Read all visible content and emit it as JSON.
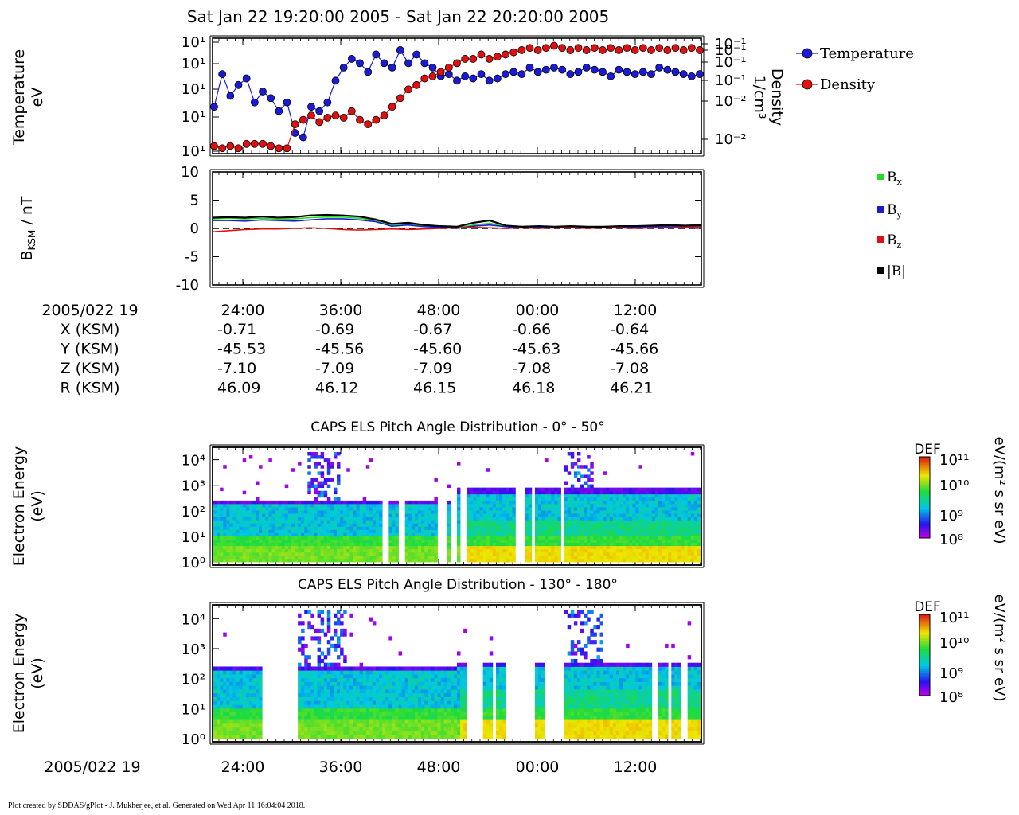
{
  "chart_data": [
    {
      "type": "line",
      "panel": "plasma-moments",
      "title": "Sat Jan 22 19:20:00 2005 - Sat Jan 22 20:20:00 2005",
      "ylabel": [
        "Temperature",
        "eV"
      ],
      "ylabel_right": [
        "Density",
        "1/cm³"
      ],
      "left_ticks": [
        "10¹",
        "10¹",
        "10¹",
        "10¹",
        "10¹"
      ],
      "right_ticks": [
        "10⁻¹",
        "10⁻¹",
        "10⁻¹",
        "10⁻¹",
        "10⁻²",
        "10⁻²"
      ],
      "legend_position": "right",
      "series": [
        {
          "name": "Temperature",
          "color": "#1b1bd6",
          "axis": "left",
          "x": [
            0,
            1,
            2,
            3,
            4,
            5,
            6,
            7,
            8,
            9,
            10,
            11,
            12,
            13,
            14,
            15,
            16,
            17,
            18,
            19,
            20,
            21,
            22,
            23,
            24,
            25,
            26,
            27,
            28,
            29,
            30,
            31,
            32,
            33,
            34,
            35,
            36,
            37,
            38,
            39,
            40,
            41,
            42,
            43,
            44,
            45,
            46,
            47,
            48,
            49,
            50,
            51,
            52,
            53,
            54,
            55,
            56,
            57,
            58,
            59,
            60
          ],
          "y": [
            20,
            35,
            25,
            30,
            33,
            22,
            27,
            24,
            18,
            22,
            8,
            6,
            20,
            18,
            22,
            32,
            38,
            42,
            40,
            36,
            44,
            40,
            38,
            46,
            40,
            44,
            40,
            38,
            34,
            35,
            32,
            34,
            33,
            35,
            32,
            33,
            35,
            36,
            35,
            38,
            36,
            37,
            38,
            37,
            35,
            36,
            38,
            37,
            36,
            34,
            37,
            36,
            35,
            36,
            35,
            38,
            37,
            36,
            35,
            34,
            35
          ]
        },
        {
          "name": "Density",
          "color": "#e01010",
          "axis": "right",
          "x": [
            0,
            1,
            2,
            3,
            4,
            5,
            6,
            7,
            8,
            9,
            10,
            11,
            12,
            13,
            14,
            15,
            16,
            17,
            18,
            19,
            20,
            21,
            22,
            23,
            24,
            25,
            26,
            27,
            28,
            29,
            30,
            31,
            32,
            33,
            34,
            35,
            36,
            37,
            38,
            39,
            40,
            41,
            42,
            43,
            44,
            45,
            46,
            47,
            48,
            49,
            50,
            51,
            52,
            53,
            54,
            55,
            56,
            57,
            58,
            59,
            60
          ],
          "y": [
            2,
            1,
            2,
            1,
            3,
            3,
            3,
            2,
            1,
            1,
            12,
            14,
            16,
            13,
            15,
            16,
            15,
            18,
            14,
            12,
            14,
            16,
            20,
            24,
            28,
            30,
            33,
            34,
            36,
            38,
            40,
            42,
            42,
            44,
            42,
            43,
            44,
            45,
            46,
            47,
            46,
            47,
            48,
            47,
            46,
            47,
            46,
            47,
            46,
            47,
            46,
            47,
            46,
            47,
            46,
            47,
            46,
            47,
            46,
            47,
            46
          ]
        }
      ]
    },
    {
      "type": "line",
      "panel": "magnetic-field",
      "ylabel_main": "B",
      "ylabel_sub": "KSM",
      "ylabel_unit": " / nT",
      "ylim": [
        -10,
        10
      ],
      "yticks": [
        10,
        5,
        0,
        -5,
        -10
      ],
      "legend_position": "right",
      "x": [
        0,
        2,
        4,
        6,
        8,
        10,
        12,
        14,
        16,
        18,
        20,
        22,
        24,
        26,
        28,
        30,
        32,
        34,
        36,
        38,
        40,
        42,
        44,
        46,
        48,
        50,
        52,
        54,
        56,
        58,
        60
      ],
      "series": [
        {
          "name": "x",
          "color": "#22dd22",
          "values": [
            1.7,
            1.8,
            1.7,
            1.8,
            1.6,
            1.7,
            1.9,
            2.0,
            2.0,
            1.8,
            1.4,
            0.6,
            0.8,
            0.4,
            0.3,
            0.1,
            0.6,
            0.9,
            0.4,
            0.2,
            0.3,
            0.2,
            0.3,
            0.2,
            0.2,
            0.3,
            0.3,
            0.4,
            0.4,
            0.4,
            0.5
          ]
        },
        {
          "name": "y",
          "color": "#1b1bd6",
          "values": [
            1.4,
            1.4,
            1.3,
            1.5,
            1.4,
            1.3,
            1.5,
            1.7,
            1.7,
            1.5,
            1.2,
            0.4,
            0.6,
            0.3,
            0.2,
            0.0,
            0.4,
            0.6,
            0.3,
            0.1,
            0.2,
            0.1,
            0.2,
            0.1,
            0.2,
            0.2,
            0.2,
            0.3,
            0.3,
            0.3,
            0.3
          ]
        },
        {
          "name": "z",
          "color": "#e01010",
          "values": [
            -0.6,
            -0.4,
            -0.2,
            -0.1,
            -0.1,
            0.0,
            0.1,
            0.0,
            -0.2,
            -0.3,
            -0.2,
            -0.1,
            -0.2,
            -0.1,
            0.0,
            0.1,
            0.2,
            0.1,
            0.0,
            0.1,
            0.0,
            0.1,
            0.1,
            0.0,
            0.1,
            0.1,
            0.0,
            0.1,
            0.1,
            0.2,
            0.2
          ]
        },
        {
          "name": "|B|",
          "color": "#000000",
          "values": [
            1.9,
            2.0,
            1.9,
            2.1,
            1.9,
            2.0,
            2.3,
            2.4,
            2.3,
            2.1,
            1.6,
            0.8,
            1.0,
            0.6,
            0.4,
            0.3,
            1.0,
            1.4,
            0.5,
            0.3,
            0.4,
            0.3,
            0.4,
            0.3,
            0.3,
            0.4,
            0.4,
            0.5,
            0.6,
            0.5,
            0.6
          ]
        }
      ],
      "legend_labels": [
        "B",
        "B",
        "B",
        "|B|"
      ],
      "legend_subs": [
        "x",
        "y",
        "z",
        ""
      ]
    },
    {
      "type": "heatmap",
      "panel": "pad-0-50",
      "title": "CAPS ELS Pitch Angle Distribution - 0° - 50°",
      "ylabel": [
        "Electron Energy",
        "(eV)"
      ],
      "yticks": [
        "10⁰",
        "10¹",
        "10²",
        "10³",
        "10⁴"
      ],
      "colorbar": {
        "label": "DEF",
        "unit": "eV/(m² s sr eV)",
        "ticks": [
          "10¹¹",
          "10¹⁰",
          "10⁹",
          "10⁸"
        ]
      },
      "gaps": [
        [
          0.345,
          0.36
        ],
        [
          0.38,
          0.39
        ],
        [
          0.455,
          0.475
        ],
        [
          0.485,
          0.495
        ],
        [
          0.505,
          0.52
        ],
        [
          0.62,
          0.635
        ],
        [
          0.65,
          0.66
        ],
        [
          0.71,
          0.72
        ]
      ],
      "burst": [
        0.19,
        0.26,
        0.72,
        0.78
      ],
      "cutoff_early": 2.2,
      "cutoff_late": 2.6
    },
    {
      "type": "heatmap",
      "panel": "pad-130-180",
      "title": "CAPS ELS Pitch Angle Distribution - 130° - 180°",
      "ylabel": [
        "Electron Energy",
        "(eV)"
      ],
      "yticks": [
        "10⁰",
        "10¹",
        "10²",
        "10³",
        "10⁴"
      ],
      "colorbar": {
        "label": "DEF",
        "unit": "eV/(m² s sr eV)",
        "ticks": [
          "10¹¹",
          "10¹⁰",
          "10⁹",
          "10⁸"
        ]
      },
      "gaps": [
        [
          0.1,
          0.17
        ],
        [
          0.52,
          0.55
        ],
        [
          0.57,
          0.58
        ],
        [
          0.6,
          0.66
        ],
        [
          0.68,
          0.72
        ],
        [
          0.9,
          0.91
        ],
        [
          0.93,
          0.94
        ],
        [
          0.96,
          0.97
        ]
      ],
      "burst": [
        0.17,
        0.27,
        0.72,
        0.8
      ],
      "cutoff_early": 2.2,
      "cutoff_late": 2.3
    }
  ],
  "time_axis": {
    "date_label": "2005/022 19",
    "ticks": [
      "24:00",
      "36:00",
      "48:00",
      "00:00",
      "12:00"
    ]
  },
  "ephemeris": [
    {
      "label": "X (KSM)",
      "values": [
        "-0.71",
        "-0.69",
        "-0.67",
        "-0.66",
        "-0.64"
      ]
    },
    {
      "label": "Y (KSM)",
      "values": [
        "-45.53",
        "-45.56",
        "-45.60",
        "-45.63",
        "-45.66"
      ]
    },
    {
      "label": "Z (KSM)",
      "values": [
        "-7.10",
        "-7.09",
        "-7.09",
        "-7.08",
        "-7.08"
      ]
    },
    {
      "label": "R (KSM)",
      "values": [
        "46.09",
        "46.12",
        "46.15",
        "46.18",
        "46.21"
      ]
    }
  ],
  "footer": "Plot created by SDDAS/gPlot - J. Mukherjee, et al.  Generated on Wed Apr 11 16:04:04 2018."
}
